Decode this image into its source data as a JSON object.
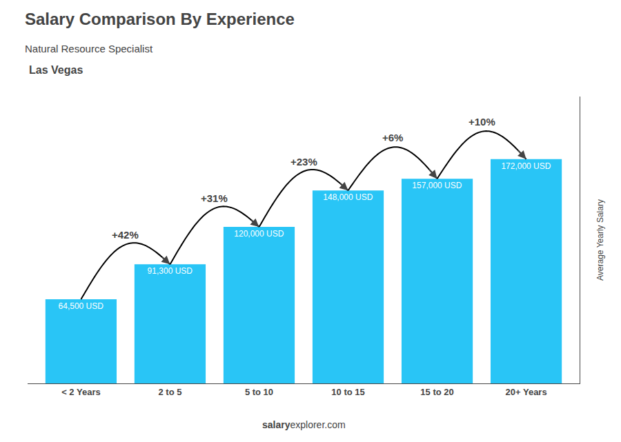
{
  "chart_data": {
    "type": "bar",
    "title": "Salary Comparison By Experience",
    "subtitle": "Natural Resource Specialist",
    "city": "Las Vegas",
    "categories": [
      "< 2 Years",
      "2 to 5",
      "5 to 10",
      "10 to 15",
      "15 to 20",
      "20+ Years"
    ],
    "values": [
      64500,
      91300,
      120000,
      148000,
      157000,
      172000
    ],
    "value_labels": [
      "64,500 USD",
      "91,300 USD",
      "120,000 USD",
      "148,000 USD",
      "157,000 USD",
      "172,000 USD"
    ],
    "data_labels": true,
    "color": "#29c5f6",
    "annotations": [
      "+42%",
      "+31%",
      "+23%",
      "+6%",
      "+10%"
    ],
    "ylabel": "Average Yearly Salary",
    "footer": [
      "salary",
      "explorer.com"
    ],
    "ylim": [
      0,
      220000
    ],
    "yticks": [],
    "tick_labels": "x",
    "grid": false
  }
}
